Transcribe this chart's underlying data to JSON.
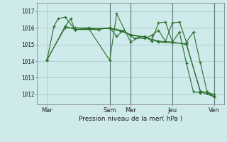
{
  "xlabel": "Pression niveau de la mer( hPa )",
  "background_color": "#ceeaea",
  "grid_color": "#a8cccc",
  "line_color": "#2d6e2d",
  "yticks": [
    1012,
    1013,
    1014,
    1015,
    1016,
    1017
  ],
  "ylim": [
    1011.4,
    1017.5
  ],
  "xlim": [
    -0.2,
    13.2
  ],
  "xtick_labels": [
    "Mar",
    "Sam",
    "Mer",
    "Jeu",
    "Ven"
  ],
  "xtick_positions": [
    0.5,
    5.0,
    6.5,
    9.5,
    12.5
  ],
  "vlines": [
    5.0,
    6.5,
    9.5,
    12.5
  ],
  "series": [
    {
      "x": [
        0.5,
        1.0,
        1.3,
        1.8,
        2.5,
        3.5,
        5.0,
        5.5,
        6.5,
        7.0,
        7.5,
        8.0,
        8.5,
        9.0,
        9.5,
        10.0,
        10.5,
        11.0,
        11.5,
        12.0,
        12.5
      ],
      "y": [
        1014.05,
        1016.1,
        1016.55,
        1016.65,
        1015.9,
        1015.95,
        1014.05,
        1016.85,
        1015.15,
        1015.4,
        1015.35,
        1015.55,
        1015.85,
        1015.2,
        1016.3,
        1016.35,
        1015.15,
        1015.75,
        1013.9,
        1012.1,
        1011.85
      ]
    },
    {
      "x": [
        0.5,
        1.8,
        2.5,
        3.5,
        5.0,
        5.8,
        6.5,
        7.5,
        8.5,
        9.5,
        10.5,
        11.5,
        12.5
      ],
      "y": [
        1014.05,
        1016.1,
        1015.9,
        1015.95,
        1016.0,
        1015.85,
        1015.55,
        1015.45,
        1015.15,
        1015.1,
        1015.05,
        1012.15,
        1011.85
      ]
    },
    {
      "x": [
        0.5,
        1.8,
        2.5,
        3.5,
        5.0,
        5.8,
        6.5,
        7.5,
        8.5,
        9.5,
        10.5,
        11.5,
        12.5
      ],
      "y": [
        1014.1,
        1016.0,
        1016.0,
        1016.0,
        1015.95,
        1015.8,
        1015.6,
        1015.45,
        1015.2,
        1015.15,
        1015.0,
        1012.2,
        1012.0
      ]
    },
    {
      "x": [
        1.8,
        2.2,
        2.5,
        4.2,
        5.0,
        5.5,
        6.0,
        6.8,
        7.5,
        8.0,
        8.5,
        9.0,
        9.5,
        10.0,
        10.5,
        11.0,
        11.5,
        12.0,
        12.5
      ],
      "y": [
        1016.1,
        1016.55,
        1015.9,
        1015.9,
        1016.0,
        1015.5,
        1015.85,
        1015.35,
        1015.5,
        1015.2,
        1016.3,
        1016.35,
        1015.15,
        1015.75,
        1013.87,
        1012.15,
        1012.1,
        1012.15,
        1011.85
      ]
    }
  ]
}
